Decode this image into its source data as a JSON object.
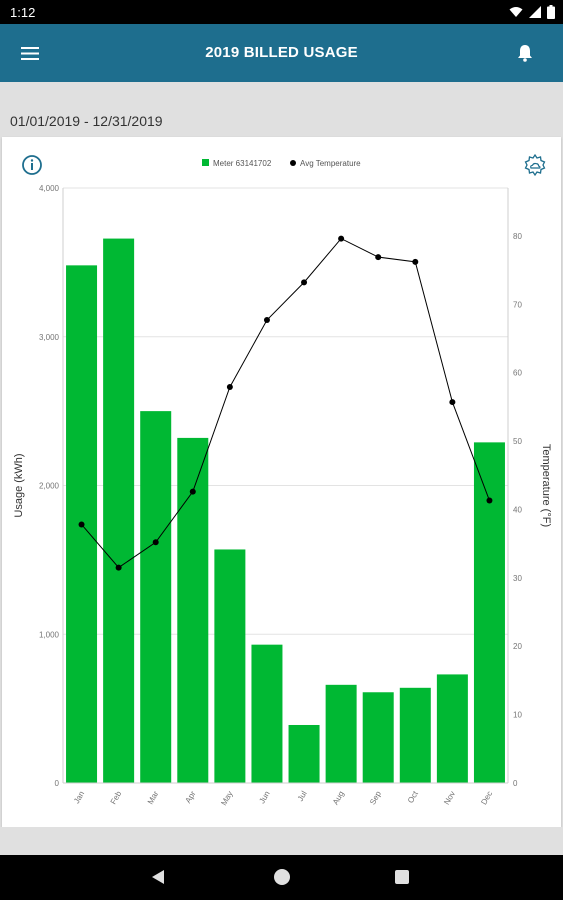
{
  "status_bar": {
    "time": "1:12",
    "icons": [
      "wifi-icon",
      "signal-icon",
      "battery-icon"
    ]
  },
  "app_bar": {
    "title": "2019 BILLED USAGE",
    "menu_icon": "hamburger-menu-icon",
    "notification_icon": "bell-icon",
    "color": "#1e6e8e"
  },
  "date_range": "01/01/2019 - 12/31/2019",
  "toolbar": {
    "info_icon": "info-icon",
    "weather_icon": "weather-icon"
  },
  "chart_data": {
    "type": "bar",
    "categories": [
      "Jan",
      "Feb",
      "Mar",
      "Apr",
      "May",
      "Jun",
      "Jul",
      "Aug",
      "Sep",
      "Oct",
      "Nov",
      "Dec"
    ],
    "series": [
      {
        "name": "Meter 63141702",
        "type": "bar",
        "axis": "left",
        "color": "#00b833",
        "values": [
          3480,
          3660,
          2500,
          2320,
          1570,
          930,
          390,
          660,
          610,
          640,
          730,
          2290
        ]
      },
      {
        "name": "Avg Temperature",
        "type": "line",
        "axis": "right",
        "color": "#000000",
        "values": [
          37.8,
          31.5,
          35.2,
          42.6,
          57.9,
          67.7,
          73.2,
          79.6,
          76.9,
          76.2,
          55.7,
          41.3
        ]
      }
    ],
    "ylabel": "Usage (kWh)",
    "y2label": "Temperature (°F)",
    "ylim": [
      0,
      4000
    ],
    "y2lim": [
      0,
      87
    ],
    "yticks": [
      "0",
      "1,000",
      "2,000",
      "3,000",
      "4,000"
    ],
    "y2ticks": [
      "0",
      "10",
      "20",
      "30",
      "40",
      "50",
      "60",
      "70",
      "80"
    ],
    "legend_position": "top-center",
    "grid": true
  }
}
